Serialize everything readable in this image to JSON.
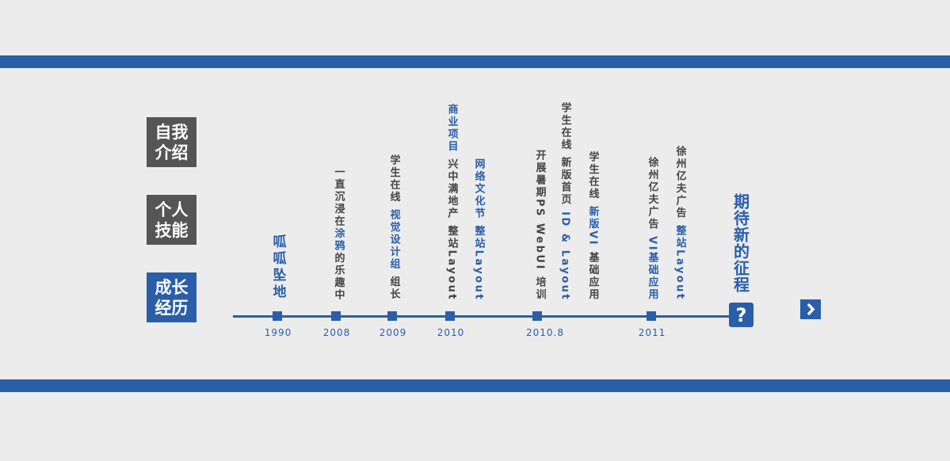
{
  "nav": [
    {
      "label": "自我介绍",
      "active": false
    },
    {
      "label": "个人技能",
      "active": false
    },
    {
      "label": "成长经历",
      "active": true
    }
  ],
  "timeline": [
    {
      "year": "1990",
      "columns": [
        [
          {
            "text": "呱呱坠地",
            "color": "#2a5ea8"
          }
        ]
      ]
    },
    {
      "year": "2008",
      "columns": [
        [
          {
            "text": "一直沉浸在",
            "color": "#444444"
          },
          {
            "text": "涂鸦",
            "color": "#2a5ea8"
          },
          {
            "text": "的乐趣中",
            "color": "#444444"
          }
        ]
      ]
    },
    {
      "year": "2009",
      "columns": [
        [
          {
            "text": "学生在线 ",
            "color": "#444444"
          },
          {
            "text": "视觉设计组",
            "color": "#2a5ea8"
          },
          {
            "text": " 组长",
            "color": "#444444"
          }
        ]
      ]
    },
    {
      "year": "2010",
      "columns": [
        [
          {
            "text": "商业项目 ",
            "color": "#2a5ea8"
          },
          {
            "text": "兴中满地产 整站Layout",
            "color": "#444444"
          }
        ],
        [
          {
            "text": "网络文化节 ",
            "color": "#2a5ea8"
          },
          {
            "text": "整站Layout",
            "color": "#2a5ea8"
          }
        ]
      ]
    },
    {
      "year": "2010.8",
      "columns": [
        [
          {
            "text": "开展暑期PS WebUI 培训",
            "color": "#444444"
          }
        ],
        [
          {
            "text": "学生在线 新版首页 ",
            "color": "#444444"
          },
          {
            "text": "ID & Layout",
            "color": "#2a5ea8"
          }
        ]
      ]
    },
    {
      "year": "2011",
      "columns": [
        [
          {
            "text": "学生在线 ",
            "color": "#444444"
          },
          {
            "text": "新版VI",
            "color": "#2a5ea8"
          },
          {
            "text": " 基础应用",
            "color": "#444444"
          }
        ],
        [
          {
            "text": "徐州亿夫广告 ",
            "color": "#444444"
          },
          {
            "text": "VI基础应用",
            "color": "#2a5ea8"
          }
        ],
        [
          {
            "text": "徐州亿夫广告 ",
            "color": "#444444"
          },
          {
            "text": "整站Layout",
            "color": "#2a5ea8"
          }
        ]
      ]
    }
  ],
  "future": {
    "text": "期待新的征程",
    "mark": "?"
  }
}
